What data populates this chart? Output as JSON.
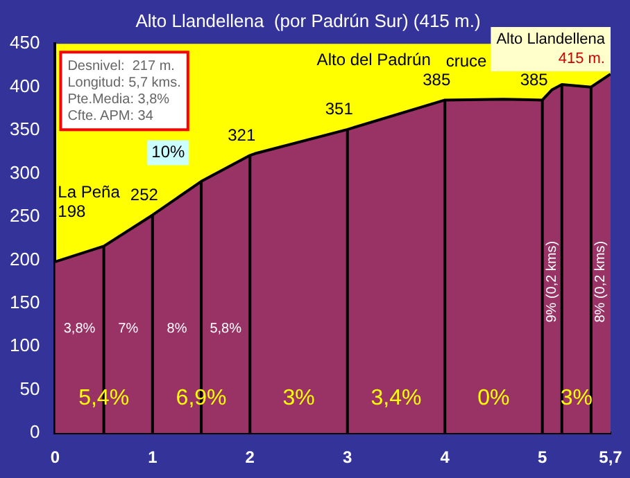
{
  "chart_data": {
    "type": "area",
    "title": "Alto Llandellena  (por Padrún Sur) (415 m.)",
    "x": [
      0,
      0.5,
      1,
      1.5,
      2,
      2.05,
      3,
      4,
      4.6,
      5,
      5.1,
      5.2,
      5.5,
      5.7
    ],
    "series": [
      {
        "color": "#993366",
        "values": [
          198,
          216,
          252,
          291,
          321,
          323,
          351,
          385,
          386,
          385,
          397,
          403,
          400,
          415
        ]
      }
    ],
    "xlim": [
      0,
      5.7
    ],
    "xticks": [
      0,
      1,
      2,
      3,
      4,
      5,
      {
        "value": 5.7,
        "label": "5,7"
      }
    ],
    "ylim": [
      0,
      450
    ],
    "yticks": [
      0,
      50,
      100,
      150,
      200,
      250,
      300,
      350,
      400,
      450
    ],
    "grid": false,
    "legend": false,
    "ref_lines": [
      {
        "axis": "x",
        "value": 0.5,
        "color": "#000000"
      },
      {
        "axis": "x",
        "value": 1,
        "color": "#000000"
      },
      {
        "axis": "x",
        "value": 1.5,
        "color": "#000000"
      },
      {
        "axis": "x",
        "value": 2,
        "color": "#000000"
      },
      {
        "axis": "x",
        "value": 3,
        "color": "#000000"
      },
      {
        "axis": "x",
        "value": 4,
        "color": "#000000"
      },
      {
        "axis": "x",
        "value": 5,
        "color": "#000000"
      },
      {
        "axis": "x",
        "value": 5.2,
        "color": "#000000"
      },
      {
        "axis": "x",
        "value": 5.5,
        "color": "#000000"
      }
    ],
    "annotations": [
      "Desnivel:  217 m.",
      "Longitud: 5,7 kms.",
      "Pte.Media: 3,8%",
      "Cfte. APM: 34",
      "La Peña",
      "10%",
      "Alto del Padrún",
      "cruce",
      "3,8%",
      "7%",
      "8%",
      "5,8%",
      "9% (0,2 kms)",
      "8% (0,2 kms)",
      "5,4%",
      "6,9%",
      "3%",
      "3,4%",
      "0%",
      "3%",
      {
        "text": "198",
        "x": 0,
        "y": 198
      },
      {
        "text": "252",
        "x": 1,
        "y": 252
      },
      {
        "text": "321",
        "x": 2,
        "y": 321
      },
      {
        "text": "351",
        "x": 3,
        "y": 351
      },
      {
        "text": "385",
        "x": 4,
        "y": 385
      },
      {
        "text": "385",
        "x": 5,
        "y": 385
      },
      {
        "text": "Alto Llandellena 415 m.",
        "x": 5.7,
        "y": 415
      }
    ]
  }
}
